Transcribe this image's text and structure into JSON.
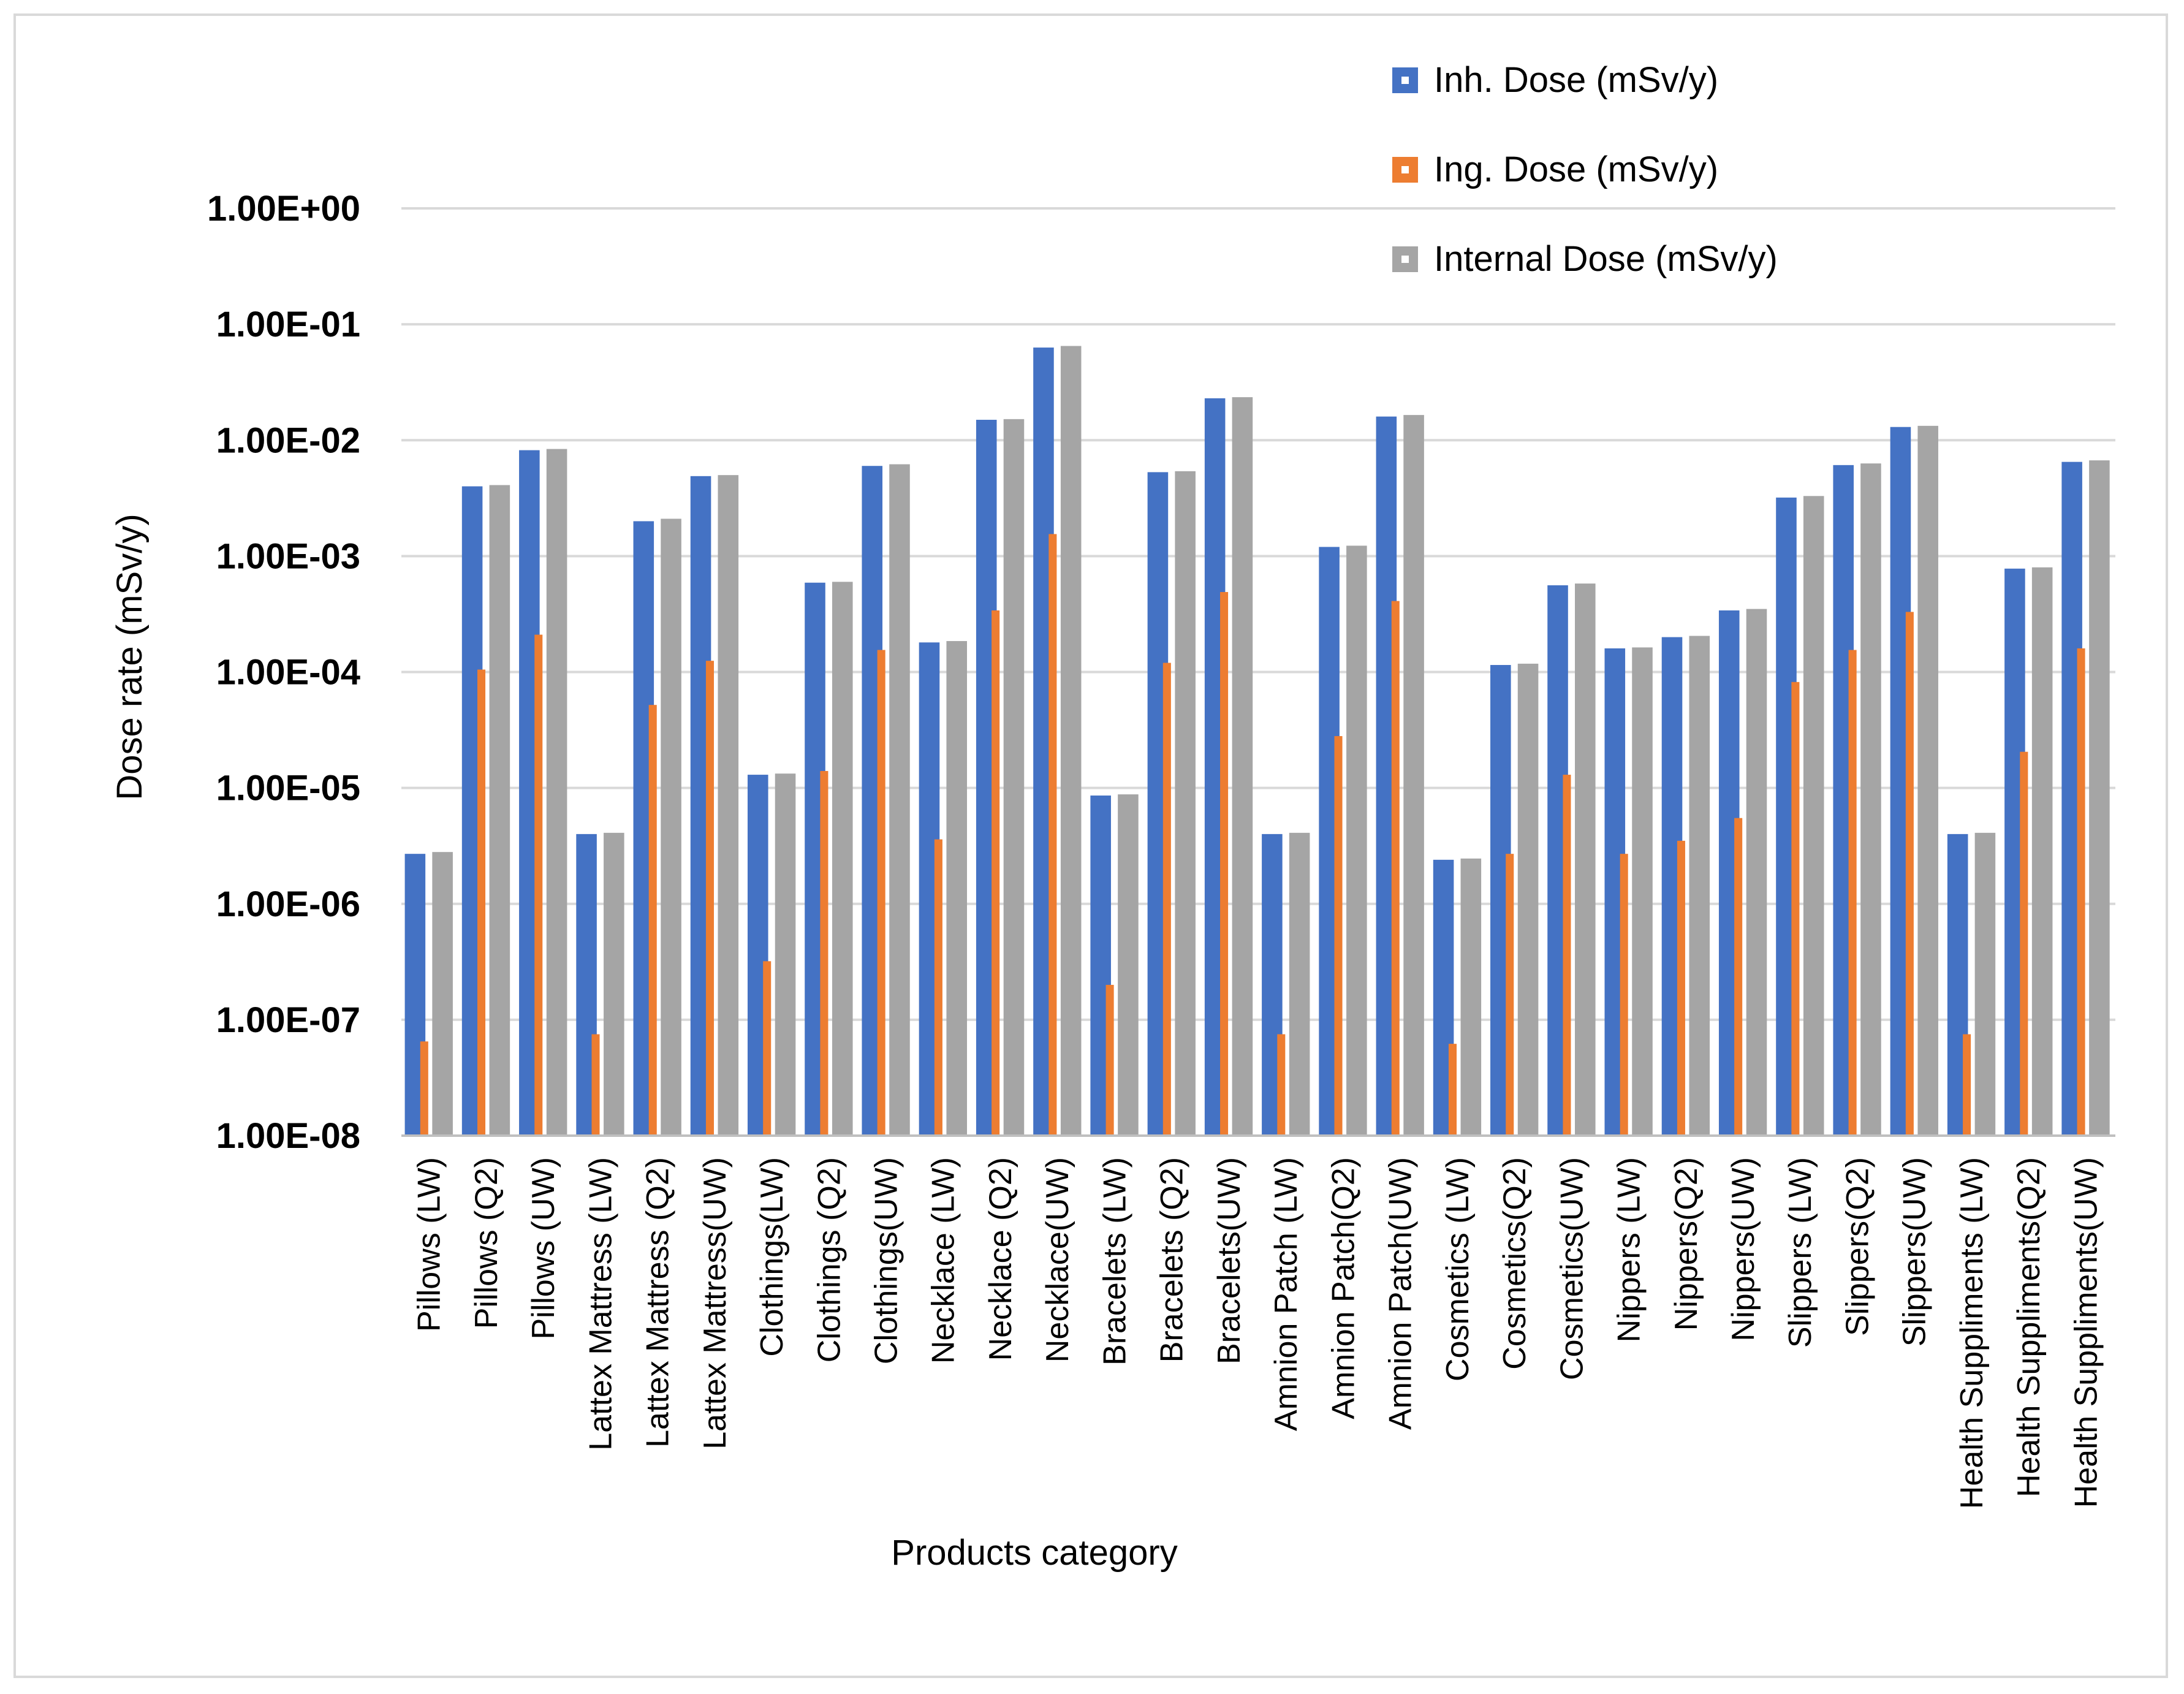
{
  "chart_data": {
    "type": "bar",
    "scale": "log",
    "title": "",
    "xlabel": "Products category",
    "ylabel": "Dose rate (mSv/y)",
    "ylim": [
      1e-08,
      1
    ],
    "yticks": [
      "1.00E-08",
      "1.00E-07",
      "1.00E-06",
      "1.00E-05",
      "1.00E-04",
      "1.00E-03",
      "1.00E-02",
      "1.00E-01",
      "1.00E+00"
    ],
    "grid": true,
    "legend_position": "top-right",
    "categories": [
      "Pillows (LW)",
      "Pillows (Q2)",
      "Pillows (UW)",
      "Lattex Mattress (LW)",
      "Lattex Mattress (Q2)",
      "Lattex Mattress(UW)",
      "Clothings(LW)",
      "Clothings (Q2)",
      "Clothings(UW)",
      "Necklace (LW)",
      "Necklace (Q2)",
      "Necklace(UW)",
      "Bracelets (LW)",
      "Bracelets (Q2)",
      "Bracelets(UW)",
      "Amnion Patch (LW)",
      "Amnion Patch(Q2)",
      "Amnion Patch(UW)",
      "Cosmetics (LW)",
      "Cosmetics(Q2)",
      "Cosmetics(UW)",
      "Nippers (LW)",
      "Nippers(Q2)",
      "Nippers(UW)",
      "Slippers (LW)",
      "Slippers(Q2)",
      "Slippers(UW)",
      "Health Suppliments (LW)",
      "Health Suppliments(Q2)",
      "Health Suppliments(UW)"
    ],
    "series": [
      {
        "name": "Inh. Dose (mSv/y)",
        "color": "#4472c4",
        "values": [
          2.7e-06,
          0.004,
          0.0082,
          4e-06,
          0.002,
          0.0049,
          1.3e-05,
          0.00059,
          0.006,
          0.00018,
          0.015,
          0.063,
          8.6e-06,
          0.0053,
          0.023,
          4e-06,
          0.0012,
          0.016,
          2.4e-06,
          0.000115,
          0.00056,
          0.00016,
          0.0002,
          0.00034,
          0.0032,
          0.0061,
          0.013,
          4e-06,
          0.00078,
          0.0065
        ]
      },
      {
        "name": "Ing. Dose (mSv/y)",
        "color": "#ed7d31",
        "values": [
          6.5e-08,
          0.000105,
          0.00021,
          7.5e-08,
          5.2e-05,
          0.000125,
          3.2e-07,
          1.4e-05,
          0.000155,
          3.6e-06,
          0.00034,
          0.00155,
          2e-07,
          0.00012,
          0.00049,
          7.5e-08,
          2.8e-05,
          0.00041,
          6.2e-08,
          2.7e-06,
          1.3e-05,
          2.7e-06,
          3.5e-06,
          5.5e-06,
          8.2e-05,
          0.000155,
          0.00033,
          7.5e-08,
          2.05e-05,
          0.00016
        ]
      },
      {
        "name": "Internal Dose (mSv/y)",
        "color": "#a5a5a5",
        "values": [
          2.8e-06,
          0.0041,
          0.0084,
          4.1e-06,
          0.0021,
          0.005,
          1.33e-05,
          0.0006,
          0.0062,
          0.000185,
          0.0152,
          0.065,
          8.8e-06,
          0.0054,
          0.0235,
          4.1e-06,
          0.00123,
          0.0165,
          2.46e-06,
          0.000118,
          0.00058,
          0.000163,
          0.000205,
          0.00035,
          0.0033,
          0.0063,
          0.0133,
          4.1e-06,
          0.0008,
          0.0067
        ]
      }
    ]
  }
}
